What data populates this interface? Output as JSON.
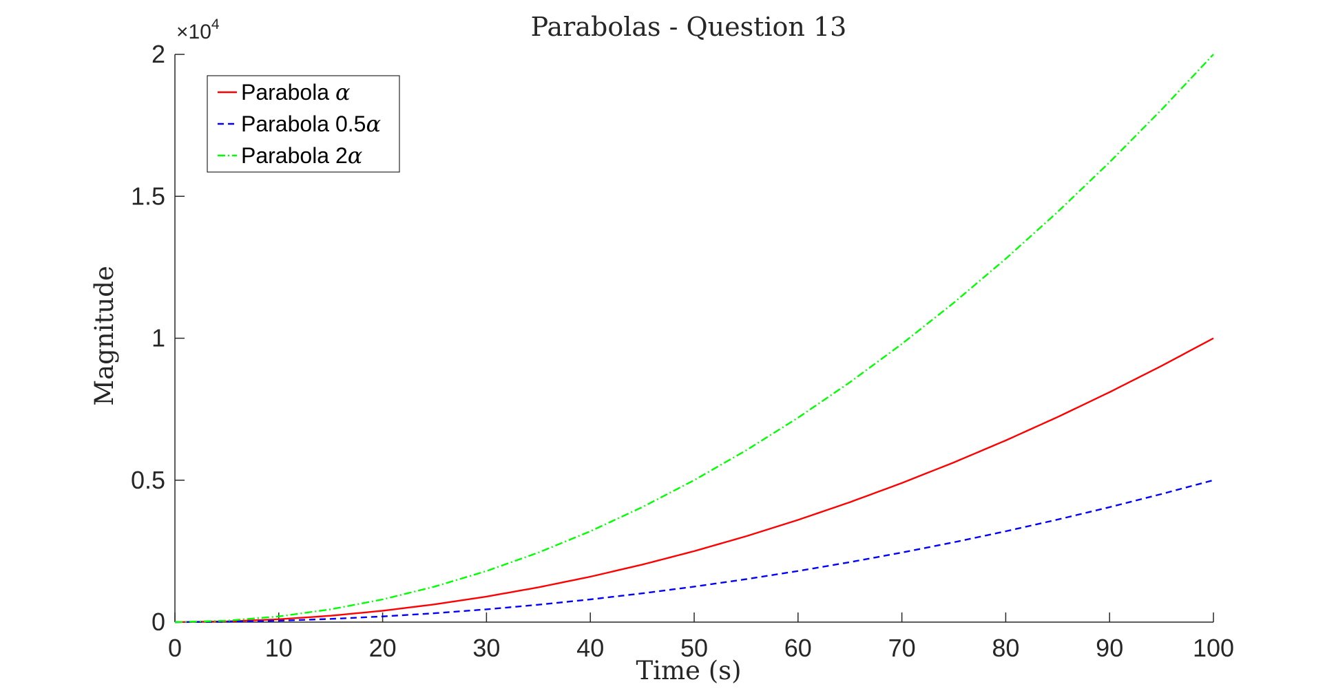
{
  "chart_data": {
    "type": "line",
    "title": "Parabolas - Question 13",
    "xlabel": "Time (s)",
    "ylabel": "Magnitude",
    "xlim": [
      0,
      100
    ],
    "ylim": [
      0,
      20000
    ],
    "x_ticks": [
      0,
      10,
      20,
      30,
      40,
      50,
      60,
      70,
      80,
      90,
      100
    ],
    "x_tick_labels": [
      "0",
      "10",
      "20",
      "30",
      "40",
      "50",
      "60",
      "70",
      "80",
      "90",
      "100"
    ],
    "y_ticks": [
      0,
      5000,
      10000,
      15000,
      20000
    ],
    "y_tick_labels": [
      "0",
      "0.5",
      "1",
      "1.5",
      "2"
    ],
    "y_exponent": {
      "prefix": "×10",
      "power": "4"
    },
    "grid": false,
    "legend_position": "top-left",
    "x": [
      0,
      5,
      10,
      15,
      20,
      25,
      30,
      35,
      40,
      45,
      50,
      55,
      60,
      65,
      70,
      75,
      80,
      85,
      90,
      95,
      100
    ],
    "series": [
      {
        "name": "Parabola α",
        "legend_prefix": "Parabola ",
        "legend_symbol": "α",
        "color": "#ff0000",
        "style": "solid",
        "values": [
          0,
          25,
          100,
          225,
          400,
          625,
          900,
          1225,
          1600,
          2025,
          2500,
          3025,
          3600,
          4225,
          4900,
          5625,
          6400,
          7225,
          8100,
          9025,
          10000
        ]
      },
      {
        "name": "Parabola 0.5α",
        "legend_prefix": "Parabola 0.5",
        "legend_symbol": "α",
        "color": "#0000ff",
        "style": "dashed",
        "values": [
          0,
          12.5,
          50,
          112.5,
          200,
          312.5,
          450,
          612.5,
          800,
          1012.5,
          1250,
          1512.5,
          1800,
          2112.5,
          2450,
          2812.5,
          3200,
          3612.5,
          4050,
          4512.5,
          5000
        ]
      },
      {
        "name": "Parabola 2α",
        "legend_prefix": "Parabola 2",
        "legend_symbol": "α",
        "color": "#00ff00",
        "style": "dashdot",
        "values": [
          0,
          50,
          200,
          450,
          800,
          1250,
          1800,
          2450,
          3200,
          4050,
          5000,
          6050,
          7200,
          8450,
          9800,
          11250,
          12800,
          14450,
          16200,
          18050,
          20000
        ]
      }
    ]
  }
}
